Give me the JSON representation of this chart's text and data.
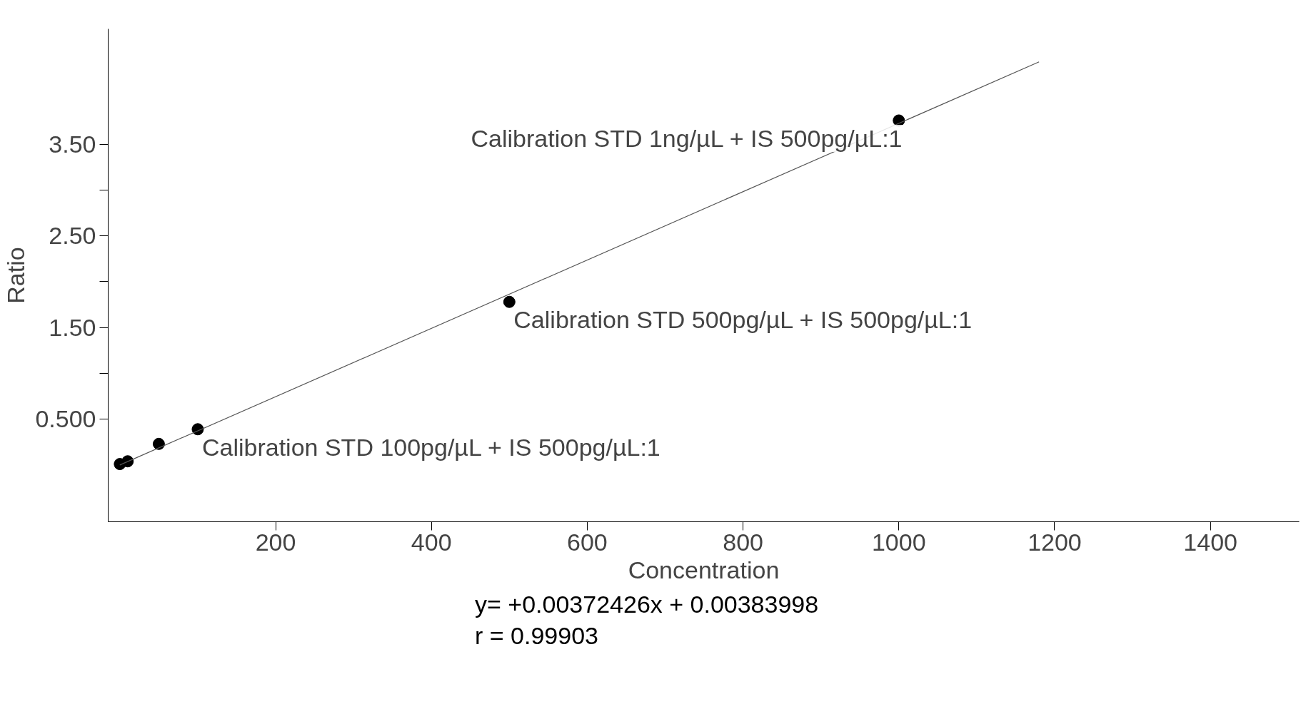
{
  "chart_data": {
    "type": "scatter",
    "xlabel": "Concentration",
    "ylabel": "Ratio",
    "xlim": [
      -15,
      1514
    ],
    "ylim": [
      -0.62,
      4.76
    ],
    "xticks": [
      200,
      400,
      600,
      800,
      1000,
      1200,
      1400
    ],
    "yticks": [
      {
        "value": 0.5,
        "label": "0.500"
      },
      {
        "value": 1,
        "label": null
      },
      {
        "value": 1.5,
        "label": "1.50"
      },
      {
        "value": 2,
        "label": null
      },
      {
        "value": 2.5,
        "label": "2.50"
      },
      {
        "value": 3,
        "label": null
      },
      {
        "value": 3.5,
        "label": "3.50"
      }
    ],
    "grid": false,
    "marker": "circle",
    "series": [
      {
        "color": "#000000",
        "x": [
          0,
          10,
          50,
          100,
          500,
          1000
        ],
        "values": [
          0.01,
          0.04,
          0.23,
          0.39,
          1.78,
          3.76
        ]
      },
      {
        "type": "line",
        "color": "#555555",
        "x": [
          0,
          1180
        ],
        "values": [
          0.0,
          4.4
        ],
        "marker": "none",
        "line_style": "solid"
      }
    ],
    "annotations": [
      {
        "text": "Calibration STD 1ng/µL + IS 500pg/µL:1",
        "x": 1000,
        "y": 3.76
      },
      {
        "text": "Calibration STD 500pg/µL + IS 500pg/µL:1",
        "x": 500,
        "y": 1.78
      },
      {
        "text": "Calibration STD 100pg/µL + IS 500pg/µL:1",
        "x": 100,
        "y": 0.39
      },
      "y= +0.00372426x + 0.00383998",
      "r = 0.99903"
    ]
  }
}
